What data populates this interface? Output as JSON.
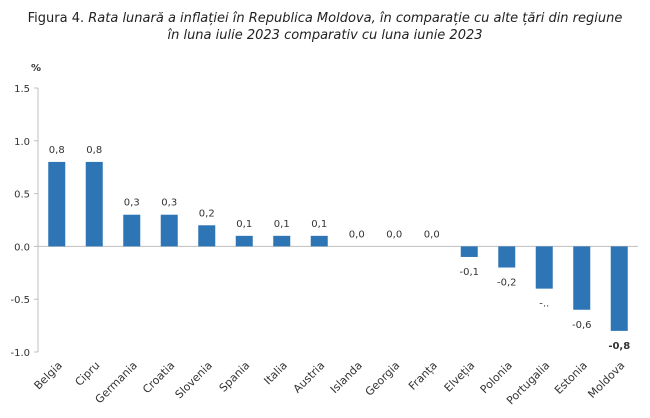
{
  "header": {
    "figure_label": "Figura 4.",
    "title_line1": "Rata lunară a inflației în Republica Moldova, în comparație cu alte țări din regiune",
    "title_line2": "în luna iulie 2023 comparativ cu luna iunie 2023"
  },
  "chart_data": {
    "type": "bar",
    "ylabel": "%",
    "ylim": [
      -1.0,
      1.5
    ],
    "yticks": [
      1.5,
      1.0,
      0.5,
      0.0,
      -0.5,
      -1.0
    ],
    "ytick_labels": [
      "1.5",
      "1.0",
      "0.5",
      "0.0",
      "-0.5",
      "-1.0"
    ],
    "categories": [
      "Belgia",
      "Cipru",
      "Germania",
      "Croatia",
      "Slovenia",
      "Spania",
      "Italia",
      "Austria",
      "Islanda",
      "Georgia",
      "Franța",
      "Elveția",
      "Polonia",
      "Portugalia",
      "Estonia",
      "Moldova"
    ],
    "values": [
      0.8,
      0.8,
      0.3,
      0.3,
      0.2,
      0.1,
      0.1,
      0.1,
      0.0,
      0.0,
      0.0,
      -0.1,
      -0.2,
      -0.4,
      -0.6,
      -0.8
    ],
    "data_labels": [
      "0,8",
      "0,8",
      "0,3",
      "0,3",
      "0,2",
      "0,1",
      "0,1",
      "0,1",
      "0,0",
      "0,0",
      "0,0",
      "-0,1",
      "-0,2",
      "-..",
      "-0,6",
      "-0,8"
    ],
    "highlight_index": 15,
    "colors": {
      "bar": "#2E75B6",
      "text": "#333333",
      "axis": "#bfbfbf"
    },
    "grid": false
  }
}
